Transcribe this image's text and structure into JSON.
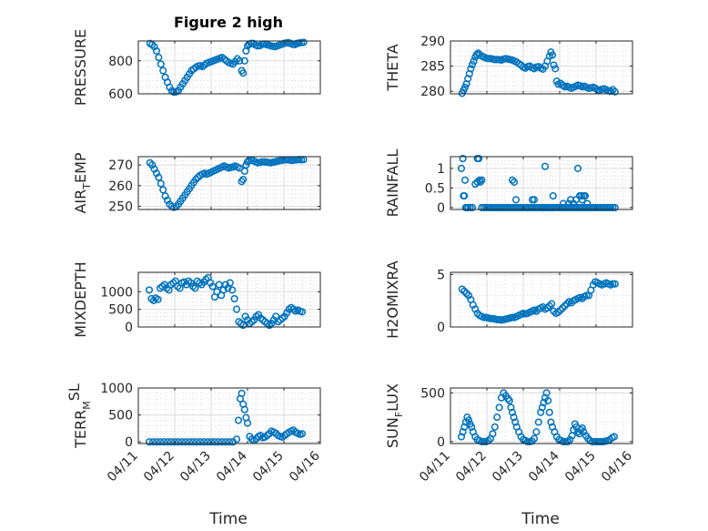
{
  "figure": {
    "title": "Figure 2 high",
    "xlabel": "Time",
    "marker_color": "#0072BD",
    "date_ticks": [
      "04/11",
      "04/12",
      "04/13",
      "04/14",
      "04/15",
      "04/16"
    ]
  },
  "chart_data": [
    {
      "type": "scatter",
      "ylabel": "PRESSURE",
      "xlim": [
        0,
        5
      ],
      "ylim": [
        600,
        920
      ],
      "yticks": [
        600,
        800
      ],
      "grid": true,
      "x": [
        0.32,
        0.38,
        0.44,
        0.5,
        0.56,
        0.62,
        0.68,
        0.74,
        0.8,
        0.86,
        0.92,
        0.98,
        1.04,
        1.1,
        1.16,
        1.22,
        1.28,
        1.34,
        1.4,
        1.46,
        1.52,
        1.58,
        1.64,
        1.7,
        1.76,
        1.82,
        1.88,
        1.94,
        2.0,
        2.06,
        2.12,
        2.18,
        2.24,
        2.3,
        2.36,
        2.42,
        2.48,
        2.54,
        2.6,
        2.66,
        2.72,
        2.78,
        2.84,
        2.88,
        2.92,
        2.96,
        3.0,
        3.04,
        3.1,
        3.16,
        3.22,
        3.28,
        3.34,
        3.4,
        3.46,
        3.52,
        3.58,
        3.64,
        3.7,
        3.76,
        3.82,
        3.88,
        3.94,
        4.0,
        4.06,
        4.12,
        4.18,
        4.24,
        4.3,
        4.36,
        4.42,
        4.48,
        4.54
      ],
      "y": [
        905,
        898,
        885,
        860,
        820,
        780,
        740,
        700,
        670,
        640,
        618,
        610,
        612,
        620,
        640,
        660,
        680,
        700,
        720,
        740,
        750,
        760,
        768,
        770,
        765,
        775,
        785,
        790,
        795,
        800,
        805,
        810,
        815,
        820,
        810,
        800,
        790,
        785,
        780,
        795,
        812,
        800,
        740,
        725,
        800,
        860,
        890,
        900,
        905,
        905,
        895,
        890,
        892,
        900,
        902,
        898,
        895,
        890,
        888,
        885,
        890,
        895,
        900,
        905,
        908,
        910,
        905,
        900,
        898,
        905,
        908,
        910,
        912
      ]
    },
    {
      "type": "scatter",
      "ylabel": "THETA",
      "xlim": [
        0,
        5
      ],
      "ylim": [
        279.5,
        290
      ],
      "yticks": [
        280,
        285,
        290
      ],
      "grid": true,
      "x": [
        0.32,
        0.36,
        0.4,
        0.44,
        0.48,
        0.52,
        0.56,
        0.6,
        0.64,
        0.68,
        0.72,
        0.76,
        0.8,
        0.86,
        0.92,
        0.98,
        1.04,
        1.1,
        1.16,
        1.22,
        1.28,
        1.34,
        1.4,
        1.46,
        1.52,
        1.58,
        1.64,
        1.7,
        1.76,
        1.82,
        1.88,
        1.94,
        2.0,
        2.06,
        2.12,
        2.18,
        2.24,
        2.3,
        2.36,
        2.42,
        2.48,
        2.54,
        2.6,
        2.66,
        2.72,
        2.76,
        2.8,
        2.84,
        2.88,
        2.92,
        2.96,
        3.02,
        3.08,
        3.14,
        3.2,
        3.26,
        3.32,
        3.38,
        3.44,
        3.5,
        3.56,
        3.62,
        3.68,
        3.74,
        3.8,
        3.86,
        3.92,
        3.98,
        4.04,
        4.1,
        4.16,
        4.22,
        4.28,
        4.34,
        4.4,
        4.46,
        4.52
      ],
      "y": [
        279.6,
        280.2,
        280.8,
        281.5,
        282.5,
        283.5,
        284.5,
        285.3,
        286.0,
        286.8,
        287.3,
        287.6,
        287.3,
        287.0,
        286.8,
        286.6,
        286.5,
        286.5,
        286.4,
        286.3,
        286.3,
        286.3,
        286.2,
        286.4,
        286.5,
        286.4,
        286.3,
        286.2,
        286.0,
        285.8,
        285.5,
        285.2,
        284.8,
        284.6,
        284.9,
        285.0,
        284.7,
        284.5,
        284.8,
        284.9,
        284.6,
        284.4,
        285.0,
        286.0,
        287.0,
        287.8,
        287.2,
        285.2,
        284.5,
        282.0,
        281.4,
        281.6,
        281.2,
        280.9,
        281.0,
        280.8,
        280.6,
        280.8,
        281.0,
        281.2,
        281.1,
        280.9,
        281.0,
        280.8,
        280.6,
        280.7,
        280.8,
        280.6,
        280.3,
        280.2,
        280.4,
        280.5,
        280.3,
        280.1,
        280.0,
        280.3,
        279.9
      ]
    },
    {
      "type": "scatter",
      "ylabel": "AIR_TEMP",
      "xlim": [
        0,
        5
      ],
      "ylim": [
        248.5,
        274
      ],
      "yticks": [
        250,
        260,
        270
      ],
      "grid": true,
      "x": [
        0.32,
        0.38,
        0.44,
        0.5,
        0.56,
        0.62,
        0.68,
        0.74,
        0.8,
        0.86,
        0.92,
        0.98,
        1.04,
        1.1,
        1.16,
        1.22,
        1.28,
        1.34,
        1.4,
        1.46,
        1.52,
        1.58,
        1.64,
        1.7,
        1.76,
        1.82,
        1.88,
        1.94,
        2.0,
        2.06,
        2.12,
        2.18,
        2.24,
        2.3,
        2.36,
        2.42,
        2.48,
        2.54,
        2.6,
        2.66,
        2.72,
        2.78,
        2.84,
        2.88,
        2.92,
        2.96,
        3.0,
        3.04,
        3.1,
        3.16,
        3.22,
        3.28,
        3.34,
        3.4,
        3.46,
        3.52,
        3.58,
        3.64,
        3.7,
        3.76,
        3.82,
        3.88,
        3.94,
        4.0,
        4.06,
        4.12,
        4.18,
        4.24,
        4.3,
        4.36,
        4.42,
        4.48,
        4.54
      ],
      "y": [
        271,
        270,
        268,
        266,
        264,
        261,
        258,
        255,
        253,
        251,
        250,
        249.5,
        249.8,
        251,
        252.5,
        254,
        255.5,
        257,
        258.5,
        260,
        261.5,
        263,
        264,
        265,
        265.5,
        266,
        265.5,
        266,
        266.5,
        267,
        267.5,
        268,
        268.5,
        269,
        269.5,
        269,
        268.5,
        268.8,
        269,
        269.5,
        269,
        268.5,
        262,
        263,
        267,
        270,
        271.5,
        272,
        272.5,
        272,
        271.5,
        271,
        271.2,
        271.5,
        271.5,
        271.3,
        271.2,
        271,
        271.3,
        271.5,
        271.8,
        272,
        272.2,
        272.4,
        272.5,
        272.4,
        272.3,
        272.2,
        272.4,
        272.5,
        272.6,
        272.5,
        272.6
      ]
    },
    {
      "type": "scatter",
      "ylabel": "RAINFALL",
      "xlim": [
        0,
        5
      ],
      "ylim": [
        -0.05,
        1.3
      ],
      "yticks": [
        0,
        0.5,
        1
      ],
      "grid": true,
      "x": [
        0.3,
        0.36,
        0.42,
        0.48,
        0.54,
        0.6,
        0.68,
        0.74,
        0.8,
        0.86,
        0.92,
        0.98,
        1.04,
        1.1,
        1.16,
        1.22,
        1.28,
        1.34,
        1.4,
        1.46,
        1.52,
        1.58,
        1.64,
        1.7,
        1.76,
        1.82,
        1.88,
        1.94,
        2.0,
        2.06,
        2.12,
        2.18,
        2.24,
        2.3,
        2.36,
        2.42,
        2.48,
        2.54,
        2.6,
        2.66,
        2.72,
        2.78,
        2.84,
        2.9,
        2.96,
        3.02,
        3.08,
        3.14,
        3.2,
        3.26,
        3.32,
        3.38,
        3.44,
        3.5,
        3.56,
        3.62,
        3.68,
        3.74,
        3.8,
        3.86,
        3.92,
        3.98,
        4.04,
        4.1,
        4.16,
        4.22,
        4.28,
        4.34,
        4.4,
        4.46,
        4.52,
        0.34,
        0.38,
        0.4,
        0.44,
        0.74,
        0.78,
        0.82,
        0.86,
        1.7,
        1.75,
        1.8,
        2.25,
        2.3,
        2.55,
        2.6,
        2.68,
        2.74,
        2.82,
        3.1,
        3.25,
        3.3,
        3.5,
        3.55,
        3.6,
        3.62,
        3.66,
        3.7,
        3.76,
        3.45,
        3.38
      ],
      "y": [
        1.0,
        0.3,
        0.0,
        0.0,
        0.0,
        0.0,
        0.6,
        0.65,
        0.7,
        0.0,
        0.0,
        0.0,
        0.0,
        0.0,
        0.0,
        0.0,
        0.0,
        0.0,
        0.0,
        0.0,
        0.0,
        0.0,
        0.0,
        0.0,
        0.0,
        0.0,
        0.0,
        0.0,
        0.0,
        0.0,
        0.0,
        0.0,
        0.0,
        0.0,
        0.0,
        0.0,
        0.0,
        0.0,
        0.0,
        0.0,
        0.0,
        0.0,
        0.0,
        0.0,
        0.0,
        0.0,
        0.0,
        0.0,
        0.0,
        0.0,
        0.0,
        0.0,
        0.0,
        0.0,
        0.0,
        0.0,
        0.0,
        0.0,
        0.0,
        0.0,
        0.0,
        0.0,
        0.0,
        0.0,
        0.0,
        0.0,
        0.0,
        0.0,
        0.0,
        0.0,
        0.0,
        1.25,
        0.3,
        0.7,
        0.0,
        1.25,
        1.25,
        0.65,
        0.7,
        0.7,
        0.65,
        0.2,
        0.2,
        0.2,
        0.0,
        1.05,
        0.0,
        0.0,
        0.3,
        0.1,
        0.1,
        0.2,
        1.0,
        0.3,
        0.3,
        0.2,
        0.3,
        0.3,
        0.1,
        0.2,
        0.1
      ]
    },
    {
      "type": "scatter",
      "ylabel": "MIXDEPTH",
      "xlim": [
        0,
        5
      ],
      "ylim": [
        0,
        1550
      ],
      "yticks": [
        0,
        500,
        1000
      ],
      "grid": true,
      "x": [
        0.3,
        0.36,
        0.42,
        0.48,
        0.54,
        0.6,
        0.66,
        0.72,
        0.78,
        0.84,
        0.9,
        0.96,
        1.02,
        1.08,
        1.14,
        1.2,
        1.26,
        1.32,
        1.38,
        1.44,
        1.5,
        1.56,
        1.62,
        1.68,
        1.74,
        1.8,
        1.86,
        1.92,
        1.98,
        2.04,
        2.1,
        2.16,
        2.22,
        2.28,
        2.34,
        2.4,
        2.46,
        2.52,
        2.58,
        2.64,
        2.7,
        2.76,
        2.82,
        2.88,
        2.94,
        3.0,
        3.06,
        3.12,
        3.18,
        3.24,
        3.3,
        3.36,
        3.42,
        3.48,
        3.54,
        3.6,
        3.66,
        3.72,
        3.78,
        3.84,
        3.9,
        3.96,
        4.02,
        4.08,
        4.14,
        4.2,
        4.26,
        4.32,
        4.38,
        4.44,
        4.5
      ],
      "y": [
        1050,
        800,
        750,
        820,
        780,
        1100,
        1150,
        1200,
        1100,
        1050,
        1200,
        1250,
        1300,
        1150,
        1100,
        1250,
        1280,
        1200,
        1300,
        1250,
        1150,
        1100,
        1300,
        1250,
        1200,
        1280,
        1350,
        1400,
        1250,
        1150,
        850,
        1000,
        1200,
        900,
        1050,
        1200,
        1100,
        1250,
        1050,
        800,
        500,
        150,
        100,
        50,
        300,
        200,
        100,
        150,
        200,
        300,
        350,
        250,
        200,
        150,
        100,
        50,
        100,
        200,
        300,
        150,
        200,
        250,
        300,
        400,
        500,
        550,
        500,
        450,
        480,
        450,
        430
      ]
    },
    {
      "type": "scatter",
      "ylabel": "H2OMIXRA",
      "xlim": [
        0,
        5
      ],
      "ylim": [
        0,
        5.2
      ],
      "yticks": [
        0,
        5
      ],
      "grid": true,
      "x": [
        0.32,
        0.38,
        0.44,
        0.5,
        0.56,
        0.62,
        0.68,
        0.74,
        0.8,
        0.86,
        0.92,
        0.98,
        1.04,
        1.1,
        1.16,
        1.22,
        1.28,
        1.34,
        1.4,
        1.46,
        1.52,
        1.58,
        1.64,
        1.7,
        1.76,
        1.82,
        1.88,
        1.94,
        2.0,
        2.06,
        2.12,
        2.18,
        2.24,
        2.3,
        2.36,
        2.42,
        2.48,
        2.54,
        2.6,
        2.66,
        2.72,
        2.78,
        2.84,
        2.9,
        2.96,
        3.02,
        3.08,
        3.14,
        3.2,
        3.26,
        3.32,
        3.38,
        3.44,
        3.5,
        3.56,
        3.62,
        3.68,
        3.74,
        3.8,
        3.86,
        3.92,
        3.98,
        4.04,
        4.1,
        4.16,
        4.22,
        4.28,
        4.34,
        4.4,
        4.46,
        4.52
      ],
      "y": [
        3.6,
        3.4,
        3.2,
        3.0,
        2.6,
        2.1,
        1.7,
        1.3,
        1.1,
        1.0,
        0.9,
        0.9,
        0.85,
        0.8,
        0.8,
        0.75,
        0.7,
        0.7,
        0.65,
        0.7,
        0.75,
        0.8,
        0.85,
        0.9,
        0.9,
        1.0,
        1.1,
        1.2,
        1.3,
        1.25,
        1.3,
        1.4,
        1.5,
        1.6,
        1.5,
        1.7,
        1.8,
        1.9,
        1.7,
        1.8,
        2.0,
        2.2,
        1.5,
        1.3,
        1.4,
        1.6,
        1.8,
        2.0,
        2.2,
        2.4,
        2.3,
        2.5,
        2.6,
        2.7,
        2.8,
        2.7,
        2.9,
        3.0,
        3.0,
        3.5,
        4.0,
        4.3,
        4.2,
        4.1,
        4.0,
        4.1,
        4.2,
        4.1,
        4.0,
        4.1,
        4.1
      ]
    },
    {
      "type": "scatter",
      "ylabel": "TERR_MSL",
      "xlim": [
        0,
        5
      ],
      "ylim": [
        -30,
        1000
      ],
      "yticks": [
        0,
        500,
        1000
      ],
      "grid": true,
      "x": [
        0.3,
        0.4,
        0.5,
        0.6,
        0.7,
        0.8,
        0.9,
        1.0,
        1.1,
        1.2,
        1.3,
        1.4,
        1.5,
        1.6,
        1.7,
        1.8,
        1.9,
        2.0,
        2.1,
        2.2,
        2.3,
        2.4,
        2.5,
        2.6,
        2.7,
        2.75,
        2.8,
        2.84,
        2.88,
        2.92,
        2.96,
        3.0,
        3.06,
        3.12,
        3.18,
        3.24,
        3.3,
        3.36,
        3.42,
        3.48,
        3.54,
        3.6,
        3.66,
        3.72,
        3.78,
        3.84,
        3.9,
        3.96,
        4.02,
        4.08,
        4.14,
        4.2,
        4.26,
        4.32,
        4.38,
        4.44,
        4.5
      ],
      "y": [
        0,
        0,
        0,
        0,
        0,
        0,
        0,
        0,
        0,
        0,
        0,
        0,
        0,
        0,
        0,
        0,
        0,
        0,
        0,
        0,
        0,
        0,
        0,
        0,
        50,
        400,
        800,
        900,
        700,
        600,
        450,
        350,
        100,
        50,
        30,
        60,
        100,
        120,
        80,
        90,
        120,
        150,
        200,
        180,
        160,
        120,
        100,
        90,
        120,
        150,
        180,
        200,
        220,
        180,
        160,
        140,
        150
      ]
    },
    {
      "type": "scatter",
      "ylabel": "SUN_FLUX",
      "xlim": [
        0,
        5
      ],
      "ylim": [
        -20,
        550
      ],
      "yticks": [
        0,
        500
      ],
      "grid": true,
      "x": [
        0.3,
        0.34,
        0.38,
        0.42,
        0.46,
        0.5,
        0.54,
        0.58,
        0.62,
        0.68,
        0.74,
        0.8,
        0.86,
        0.92,
        0.98,
        1.04,
        1.1,
        1.16,
        1.22,
        1.28,
        1.34,
        1.4,
        1.46,
        1.52,
        1.58,
        1.62,
        1.66,
        1.7,
        1.74,
        1.78,
        1.82,
        1.88,
        1.94,
        2.0,
        2.06,
        2.12,
        2.18,
        2.24,
        2.3,
        2.36,
        2.42,
        2.48,
        2.52,
        2.56,
        2.6,
        2.64,
        2.68,
        2.72,
        2.76,
        2.8,
        2.86,
        2.92,
        2.98,
        3.04,
        3.1,
        3.16,
        3.22,
        3.28,
        3.34,
        3.38,
        3.42,
        3.46,
        3.5,
        3.54,
        3.58,
        3.62,
        3.66,
        3.72,
        3.78,
        3.84,
        3.9,
        3.96,
        4.02,
        4.08,
        4.14,
        4.2,
        4.26,
        4.32,
        4.38,
        4.44,
        4.5
      ],
      "y": [
        50,
        100,
        150,
        200,
        250,
        220,
        180,
        150,
        100,
        50,
        20,
        10,
        0,
        0,
        0,
        10,
        30,
        80,
        150,
        250,
        350,
        450,
        500,
        470,
        440,
        420,
        350,
        300,
        250,
        200,
        150,
        100,
        50,
        20,
        10,
        0,
        0,
        5,
        30,
        100,
        200,
        300,
        350,
        400,
        450,
        500,
        420,
        300,
        200,
        150,
        100,
        50,
        20,
        10,
        0,
        0,
        0,
        20,
        60,
        120,
        180,
        150,
        100,
        80,
        120,
        140,
        100,
        60,
        30,
        10,
        0,
        0,
        0,
        0,
        0,
        0,
        5,
        10,
        20,
        40,
        50
      ]
    }
  ]
}
